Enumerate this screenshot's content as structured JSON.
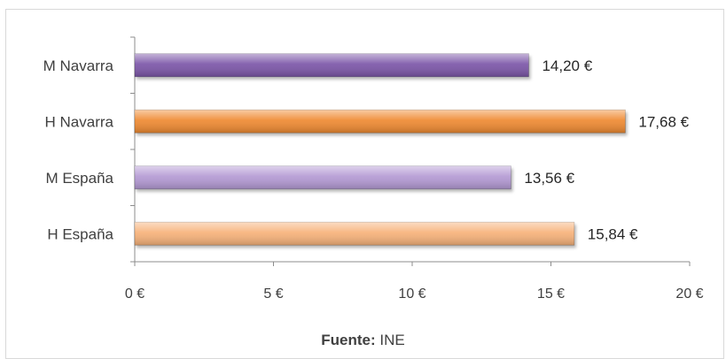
{
  "chart_data": {
    "type": "bar",
    "orientation": "horizontal",
    "categories": [
      "H España",
      "M España",
      "H Navarra",
      "M Navarra"
    ],
    "values": [
      15.84,
      13.56,
      17.68,
      14.2
    ],
    "value_labels": [
      "15,84 €",
      "13,56 €",
      "17,68 €",
      "14,20 €"
    ],
    "bar_colors": [
      "#f7b27a",
      "#b49ad4",
      "#ef8a32",
      "#7b56a8"
    ],
    "xlim": [
      0,
      20
    ],
    "xticks": [
      0,
      5,
      10,
      15,
      20
    ],
    "xtick_labels": [
      "0 €",
      "5 €",
      "10 €",
      "15 €",
      "20 €"
    ],
    "grid": false,
    "legend": "none",
    "title": "",
    "xlabel": "",
    "ylabel": ""
  },
  "source": {
    "label": "Fuente:",
    "value": "INE"
  }
}
